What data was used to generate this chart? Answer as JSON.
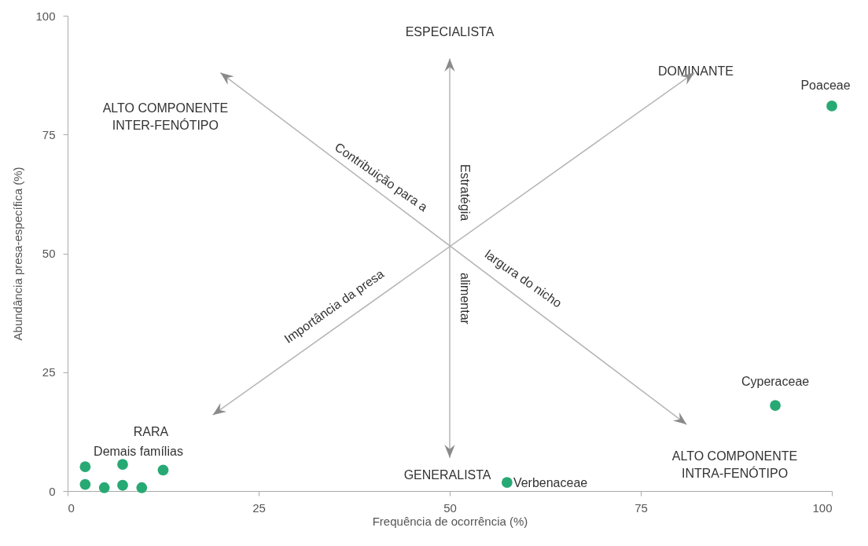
{
  "chart_data": {
    "type": "scatter",
    "xlabel": "Frequência de ocorrência (%)",
    "ylabel": "Abundância presa-específica (%)",
    "x": [
      2.3,
      2.3,
      4.8,
      7.2,
      7.2,
      9.7,
      12.5,
      57.5,
      92.6,
      100
    ],
    "values": [
      5.1,
      1.4,
      0.7,
      5.6,
      1.2,
      0.7,
      4.4,
      1.8,
      18,
      81
    ],
    "color": "#27a974",
    "marker": "circle",
    "xlim": [
      0,
      100
    ],
    "ylim": [
      0,
      100
    ],
    "xticks": [
      0,
      25,
      50,
      75,
      100
    ],
    "yticks": [
      0,
      25,
      50,
      75,
      100
    ],
    "annotations": [
      "ESPECIALISTA",
      "DOMINANTE",
      "ALTO COMPONENTE\nINTER-FENÓTIPO",
      "RARA",
      "GENERALISTA",
      "ALTO COMPONENTE\nINTRA-FENÓTIPO",
      "Contribuição para a",
      "largura do nicho",
      "Importância da presa",
      "Estratégia",
      "alimentar",
      {
        "text": "Poaceae",
        "x": 100,
        "y": 81
      },
      {
        "text": "Cyperaceae",
        "x": 92.6,
        "y": 18
      },
      {
        "text": "Verbenaceae",
        "x": 57.5,
        "y": 1.8
      },
      {
        "text": "Demais famílias",
        "x": 7.2,
        "y": 5.6
      }
    ]
  }
}
